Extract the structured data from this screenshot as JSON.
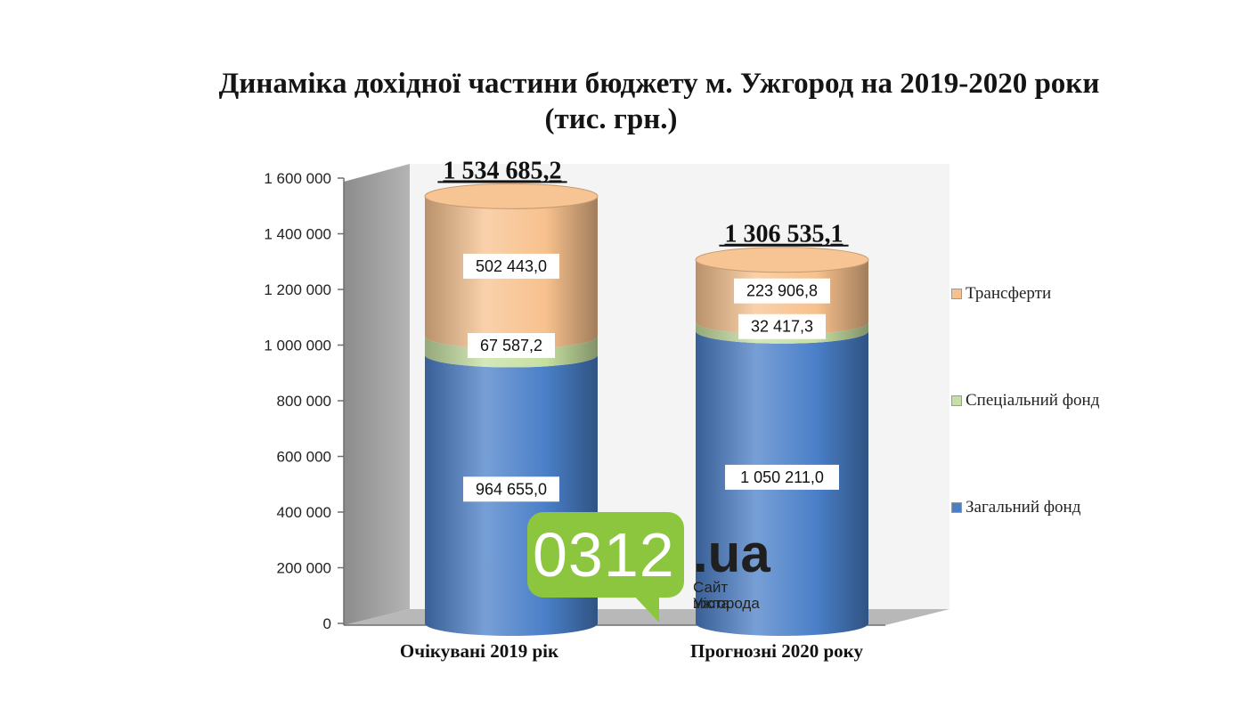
{
  "chart_data": {
    "type": "bar",
    "stacked": true,
    "style": "3d-cylinder",
    "title": "Динаміка дохідної частини бюджету м. Ужгород на 2019-2020 роки",
    "subtitle": "(тис. грн.)",
    "categories": [
      "Очікувані 2019 рік",
      "Прогнозні 2020 року"
    ],
    "series": [
      {
        "name": "Загальний фонд",
        "values": [
          964655.0,
          1050211.0
        ],
        "labels": [
          "964 655,0",
          "1 050 211,0"
        ],
        "color": "#4a7fc8"
      },
      {
        "name": "Спеціальний фонд",
        "values": [
          67587.2,
          32417.3
        ],
        "labels": [
          "67 587,2",
          "32 417,3"
        ],
        "color": "#c6e0a1"
      },
      {
        "name": "Трансферти",
        "values": [
          502443.0,
          223906.8
        ],
        "labels": [
          "502 443,0",
          "223 906,8"
        ],
        "color": "#f7c18d"
      }
    ],
    "totals": [
      "1 534 685,2",
      "1 306 535,1"
    ],
    "total_values": [
      1534685.2,
      1306535.1
    ],
    "ylim": [
      0,
      1600000
    ],
    "yticks": [
      0,
      200000,
      400000,
      600000,
      800000,
      1000000,
      1200000,
      1400000,
      1600000
    ],
    "ytick_labels": [
      "0",
      "200 000",
      "400 000",
      "600 000",
      "800 000",
      "1 000 000",
      "1 200 000",
      "1 400 000",
      "1 600 000"
    ],
    "legend_position": "right",
    "legend_order": [
      "Трансферти",
      "Спеціальний фонд",
      "Загальний фонд"
    ]
  },
  "watermark": {
    "number": "0312",
    "domain": ".ua",
    "line1": "Сайт міста",
    "line2": "Ужгорода"
  }
}
